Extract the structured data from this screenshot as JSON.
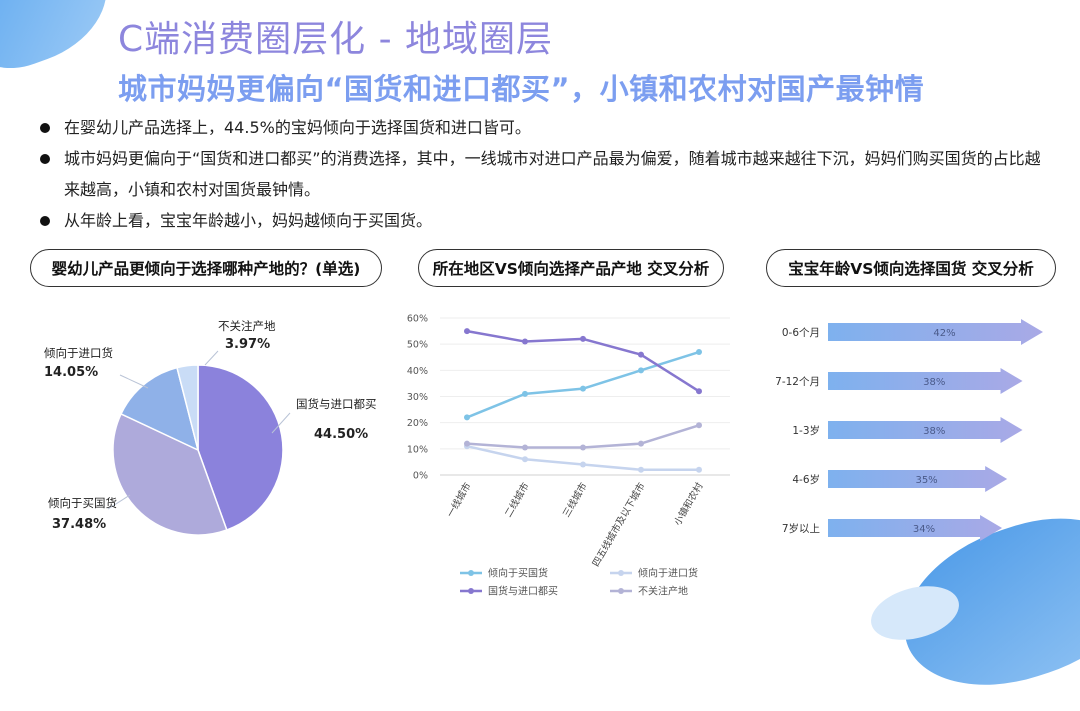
{
  "title": "C端消费圈层化 - 地域圈层",
  "subtitle": "城市妈妈更偏向“国货和进口都买”，小镇和农村对国产最钟情",
  "bullets": [
    "在婴幼儿产品选择上，44.5%的宝妈倾向于选择国货和进口皆可。",
    "城市妈妈更偏向于“国货和进口都买”的消费选择，其中，一线城市对进口产品最为偏爱，随着城市越来越往下沉，妈妈们购买国货的占比越来越高，小镇和农村对国货最钟情。",
    "从年龄上看，宝宝年龄越小，妈妈越倾向于买国货。"
  ],
  "chart_data": [
    {
      "type": "pie",
      "title": "婴幼儿产品更倾向于选择哪种产地的？(单选)",
      "slices": [
        {
          "name": "国货与进口都买",
          "label": "44.50%",
          "value": 44.5,
          "color": "#8b82dc"
        },
        {
          "name": "倾向于买国货",
          "label": "37.48%",
          "value": 37.48,
          "color": "#aeaadb"
        },
        {
          "name": "倾向于进口货",
          "label": "14.05%",
          "value": 14.05,
          "color": "#8fb1e8"
        },
        {
          "name": "不关注产地",
          "label": "3.97%",
          "value": 3.97,
          "color": "#c9dcf6"
        }
      ]
    },
    {
      "type": "line",
      "title": "所在地区VS倾向选择产品产地 交叉分析",
      "categories": [
        "一线城市",
        "二线城市",
        "三线城市",
        "四五线城市及以下城市",
        "小镇和农村"
      ],
      "ylim": [
        0,
        60
      ],
      "yticks": [
        "0%",
        "10%",
        "20%",
        "30%",
        "40%",
        "50%",
        "60%"
      ],
      "series": [
        {
          "name": "倾向于买国货",
          "values": [
            22,
            31,
            33,
            40,
            47
          ],
          "color": "#7ec3e6"
        },
        {
          "name": "倾向于进口货",
          "values": [
            11,
            6,
            4,
            2,
            2
          ],
          "color": "#c6d4ee"
        },
        {
          "name": "国货与进口都买",
          "values": [
            55,
            51,
            52,
            46,
            32
          ],
          "color": "#8677cf"
        },
        {
          "name": "不关注产地",
          "values": [
            12,
            10.5,
            10.5,
            12,
            19
          ],
          "color": "#b3b3d6"
        }
      ]
    },
    {
      "type": "bar",
      "title": "宝宝年龄VS倾向选择国货 交叉分析",
      "categories": [
        "0-6个月",
        "7-12个月",
        "1-3岁",
        "4-6岁",
        "7岁以上"
      ],
      "values": [
        42,
        38,
        38,
        35,
        34
      ],
      "labels": [
        "42%",
        "38%",
        "38%",
        "35%",
        "34%"
      ],
      "xlim": [
        0,
        42
      ]
    }
  ]
}
